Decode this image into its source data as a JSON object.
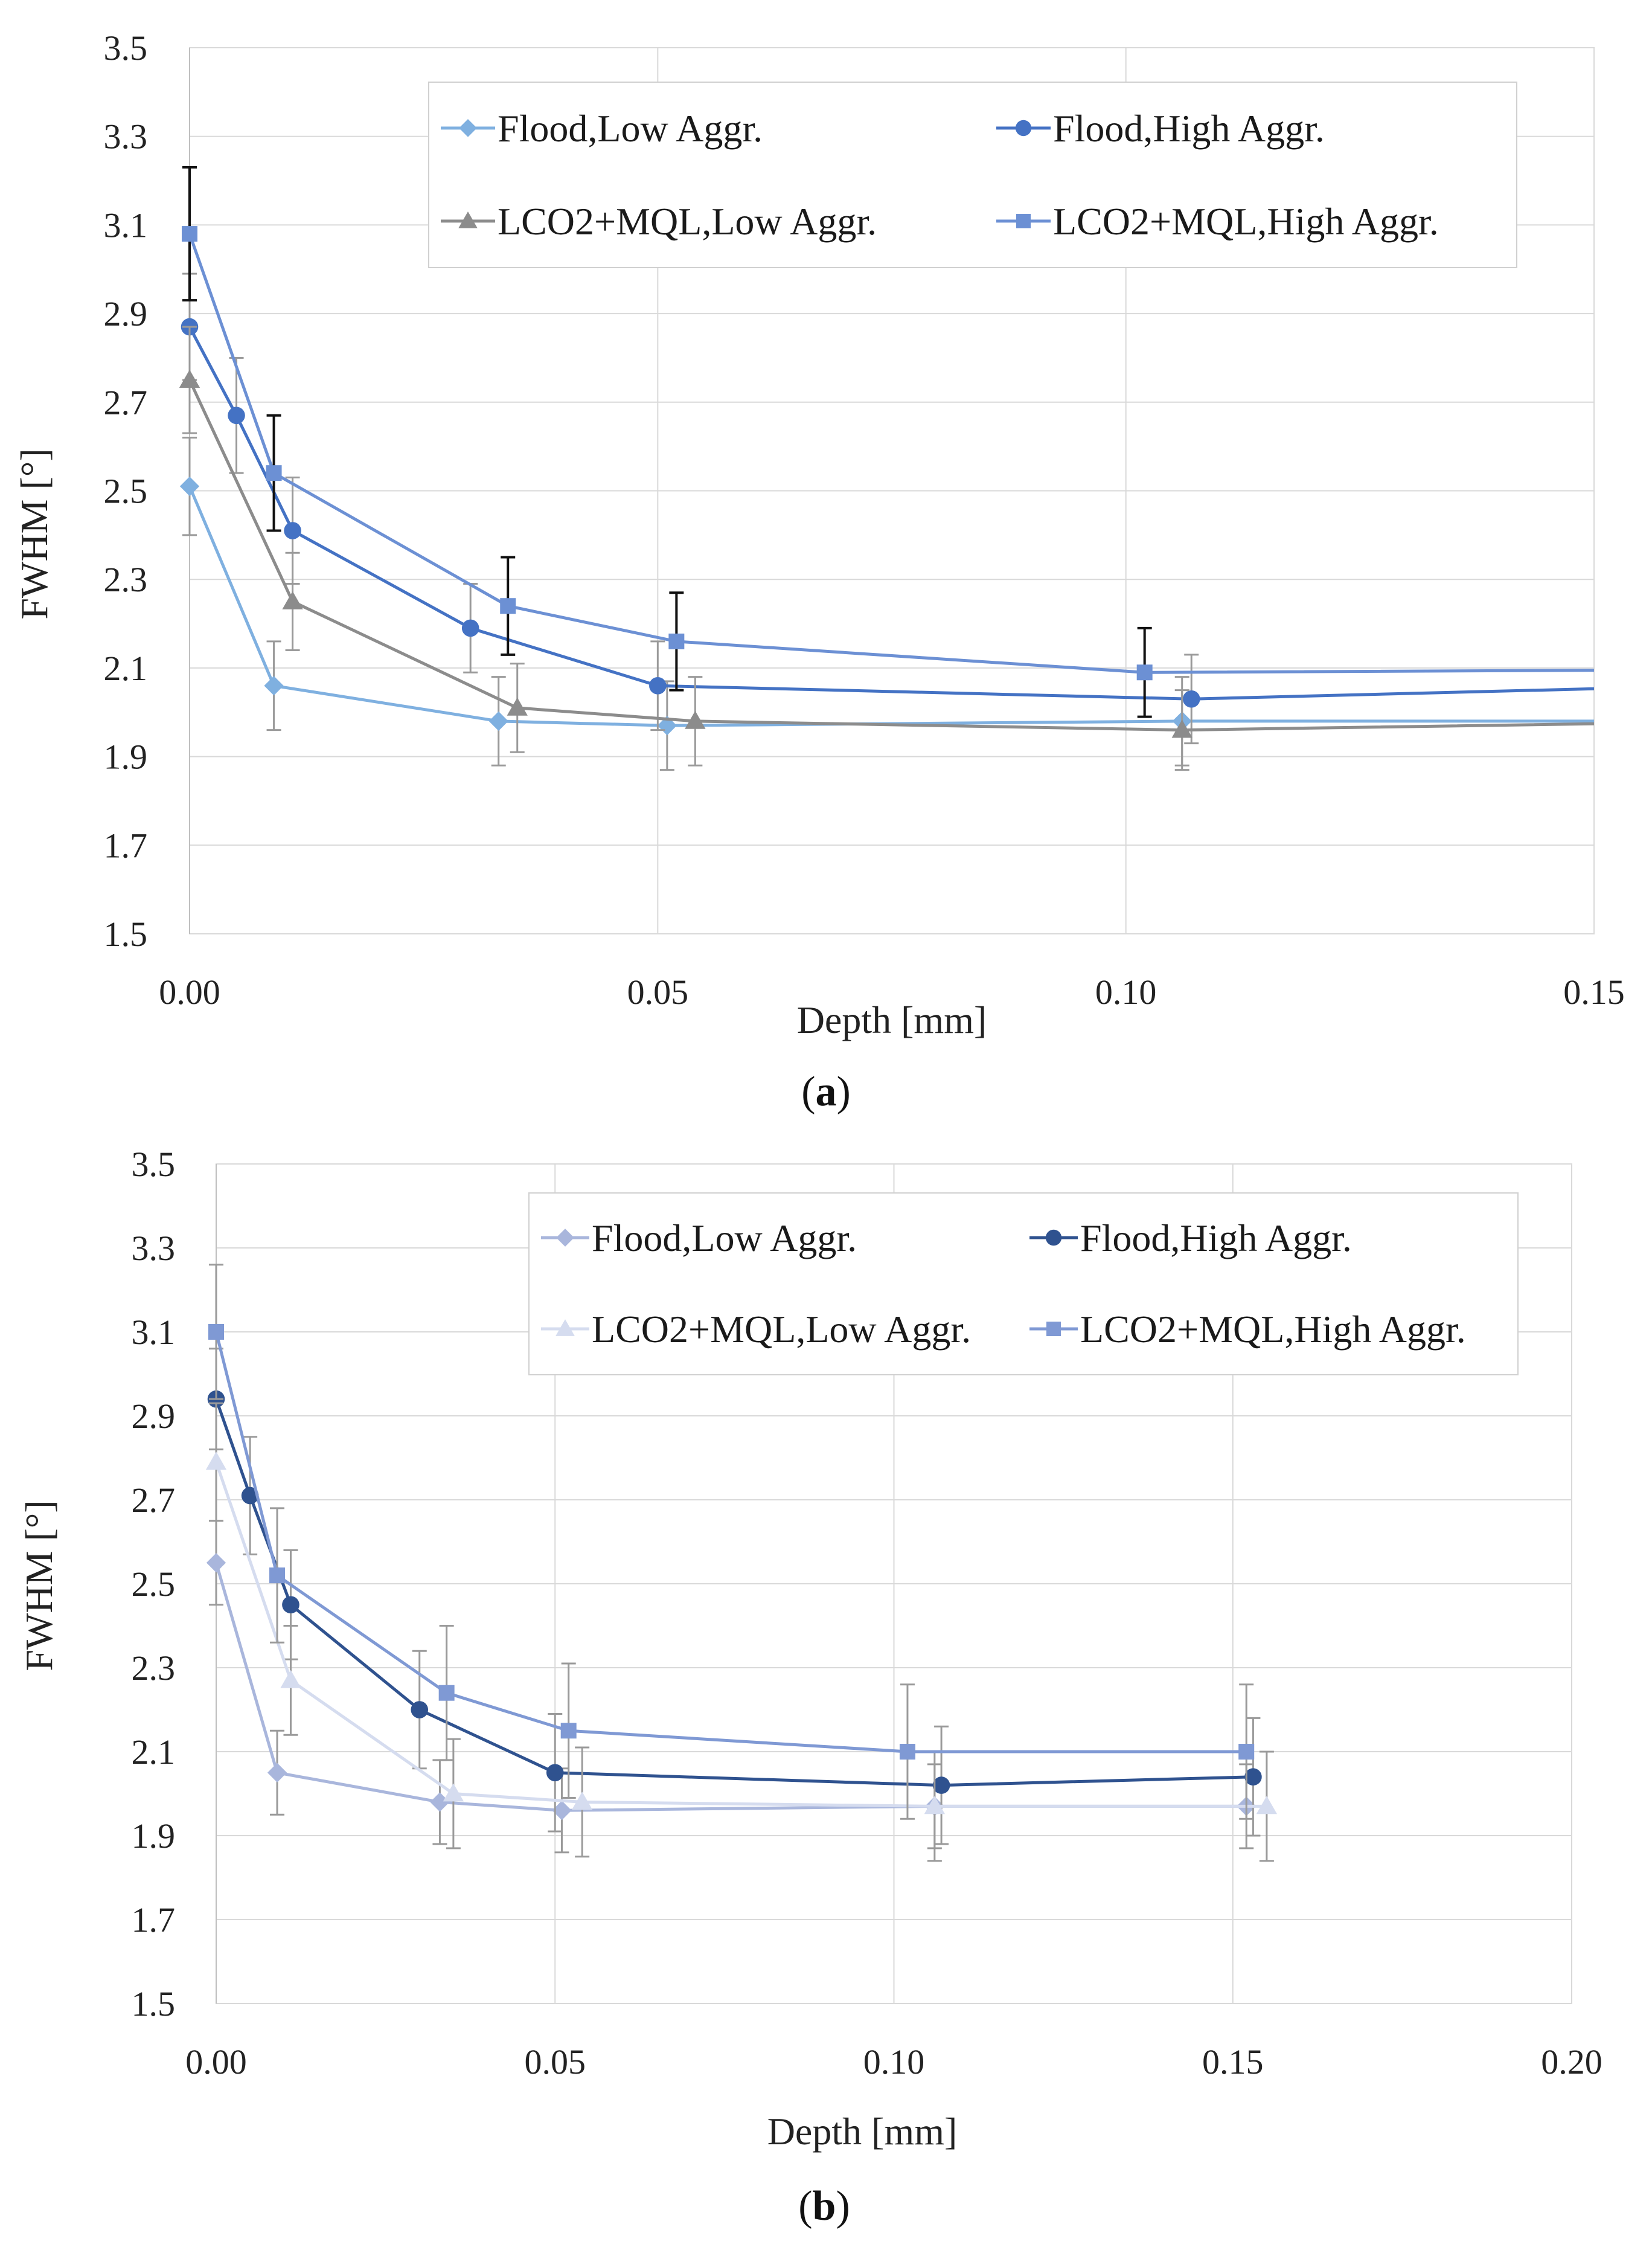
{
  "chart_data": [
    {
      "type": "line",
      "panel_label": "a",
      "xlabel": "Depth [mm]",
      "ylabel": "FWHM [°]",
      "xlim": [
        0,
        0.15
      ],
      "ylim": [
        1.5,
        3.5
      ],
      "x_ticks": [
        "0.00",
        "0.05",
        "0.10",
        "0.15"
      ],
      "x_tick_values": [
        0,
        0.05,
        0.1,
        0.15
      ],
      "y_ticks": [
        "3.5",
        "3.3",
        "3.1",
        "2.9",
        "2.7",
        "2.5",
        "2.3",
        "2.1",
        "1.9",
        "1.7",
        "1.5"
      ],
      "y_tick_values": [
        3.5,
        3.3,
        3.1,
        2.9,
        2.7,
        2.5,
        2.3,
        2.1,
        1.9,
        1.7,
        1.5
      ],
      "grid": true,
      "legend_position": "top-right",
      "series": [
        {
          "name": "Flood,Low Aggr.",
          "marker": "diamond",
          "color": "#7fb0e0",
          "error_color": "#9a9a9a",
          "x": [
            0,
            0.009,
            0.033,
            0.051,
            0.106,
            0.2
          ],
          "y": [
            2.51,
            2.06,
            1.98,
            1.97,
            1.98,
            1.98
          ],
          "yerr": [
            0.11,
            0.1,
            0.1,
            0.1,
            0.1,
            0
          ]
        },
        {
          "name": "Flood,High Aggr.",
          "marker": "circle",
          "color": "#4472c4",
          "error_color": "#9a9a9a",
          "x": [
            0,
            0.005,
            0.011,
            0.03,
            0.05,
            0.107,
            0.2
          ],
          "y": [
            2.87,
            2.67,
            2.41,
            2.19,
            2.06,
            2.03,
            2.08
          ],
          "yerr": [
            0.12,
            0.13,
            0.12,
            0.1,
            0.1,
            0.1,
            0
          ]
        },
        {
          "name": "LCO2+MQL,Low Aggr.",
          "marker": "triangle",
          "color": "#8c8c8c",
          "error_color": "#9a9a9a",
          "x": [
            0,
            0.011,
            0.035,
            0.054,
            0.106,
            0.2
          ],
          "y": [
            2.75,
            2.25,
            2.01,
            1.98,
            1.96,
            1.99
          ],
          "yerr": [
            0.12,
            0.11,
            0.1,
            0.1,
            0.09,
            0
          ]
        },
        {
          "name": "LCO2+MQL,High Aggr.",
          "marker": "square",
          "color": "#6c90d4",
          "error_color": "#111111",
          "x": [
            0,
            0.009,
            0.034,
            0.052,
            0.102,
            0.2
          ],
          "y": [
            3.08,
            2.54,
            2.24,
            2.16,
            2.09,
            2.1
          ],
          "yerr": [
            0.15,
            0.13,
            0.11,
            0.11,
            0.1,
            0
          ]
        }
      ]
    },
    {
      "type": "line",
      "panel_label": "b",
      "xlabel": "Depth [mm]",
      "ylabel": "FWHM [°]",
      "xlim": [
        0,
        0.2
      ],
      "ylim": [
        1.5,
        3.5
      ],
      "x_ticks": [
        "0.00",
        "0.05",
        "0.10",
        "0.15",
        "0.20"
      ],
      "x_tick_values": [
        0,
        0.05,
        0.1,
        0.15,
        0.2
      ],
      "y_ticks": [
        "3.5",
        "3.3",
        "3.1",
        "2.9",
        "2.7",
        "2.5",
        "2.3",
        "2.1",
        "1.9",
        "1.7",
        "1.5"
      ],
      "y_tick_values": [
        3.5,
        3.3,
        3.1,
        2.9,
        2.7,
        2.5,
        2.3,
        2.1,
        1.9,
        1.7,
        1.5
      ],
      "grid": true,
      "legend_position": "top-right",
      "series": [
        {
          "name": "Flood,Low Aggr.",
          "marker": "diamond",
          "color": "#a9b6dc",
          "error_color": "#9a9a9a",
          "x": [
            0,
            0.009,
            0.033,
            0.051,
            0.106,
            0.152
          ],
          "y": [
            2.55,
            2.05,
            1.98,
            1.96,
            1.97,
            1.97
          ],
          "yerr": [
            0.1,
            0.1,
            0.1,
            0.1,
            0.1,
            0.1
          ]
        },
        {
          "name": "Flood,High Aggr.",
          "marker": "circle",
          "color": "#2f528f",
          "error_color": "#9a9a9a",
          "x": [
            0,
            0.005,
            0.011,
            0.03,
            0.05,
            0.107,
            0.153
          ],
          "y": [
            2.94,
            2.71,
            2.45,
            2.2,
            2.05,
            2.02,
            2.04
          ],
          "yerr": [
            0.12,
            0.14,
            0.13,
            0.14,
            0.14,
            0.14,
            0.14
          ]
        },
        {
          "name": "LCO2+MQL,Low Aggr.",
          "marker": "triangle",
          "color": "#d5dcef",
          "error_color": "#9a9a9a",
          "x": [
            0,
            0.011,
            0.035,
            0.054,
            0.106,
            0.155
          ],
          "y": [
            2.79,
            2.27,
            2.0,
            1.98,
            1.97,
            1.97
          ],
          "yerr": [
            0.14,
            0.13,
            0.13,
            0.13,
            0.13,
            0.13
          ]
        },
        {
          "name": "LCO2+MQL,High Aggr.",
          "marker": "square",
          "color": "#7f99d4",
          "error_color": "#9a9a9a",
          "x": [
            0,
            0.009,
            0.034,
            0.052,
            0.102,
            0.152
          ],
          "y": [
            3.1,
            2.52,
            2.24,
            2.15,
            2.1,
            2.1
          ],
          "yerr": [
            0.16,
            0.16,
            0.16,
            0.16,
            0.16,
            0.16
          ]
        }
      ]
    }
  ]
}
